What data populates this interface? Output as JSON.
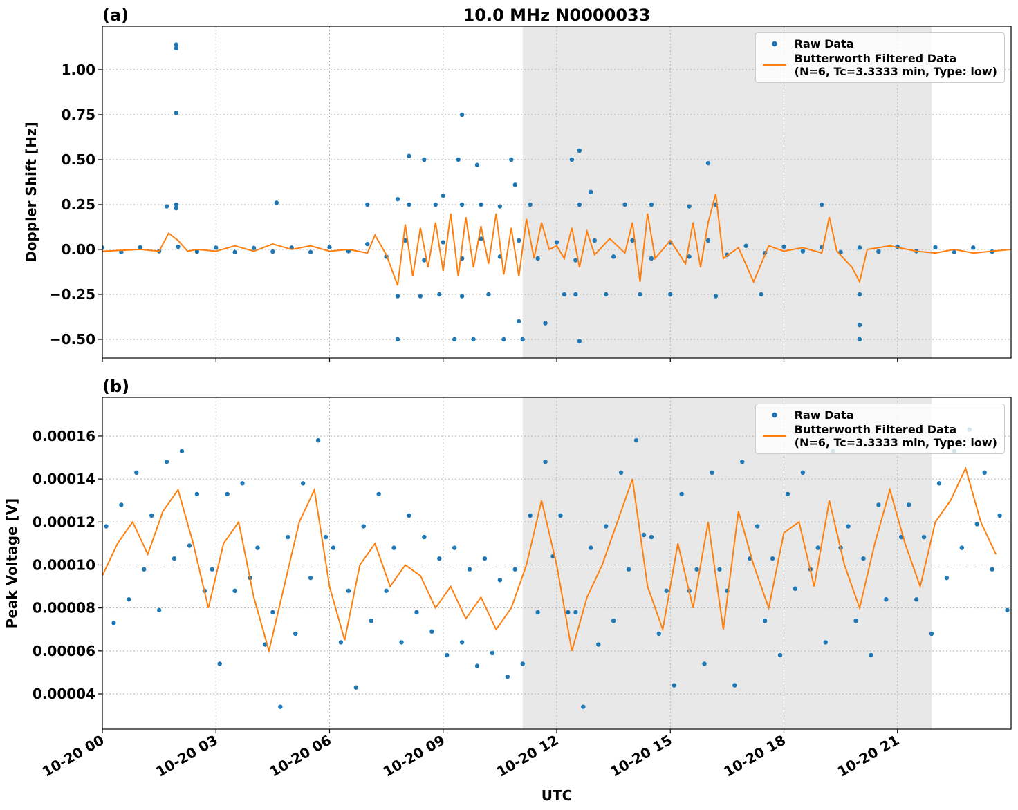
{
  "chart_data": [
    {
      "type": "scatter",
      "panel_label": "(a)",
      "title": "10.0 MHz N0000033",
      "ylabel": "Doppler Shift [Hz]",
      "xlim": [
        0,
        24
      ],
      "xticks": [
        0,
        3,
        6,
        9,
        12,
        15,
        18,
        21
      ],
      "ylim": [
        -0.604,
        1.242
      ],
      "yticks": [
        {
          "value": -0.5,
          "label": "−0.50"
        },
        {
          "value": -0.25,
          "label": "−0.25"
        },
        {
          "value": 0,
          "label": "0.00"
        },
        {
          "value": 0.25,
          "label": "0.25"
        },
        {
          "value": 0.5,
          "label": "0.50"
        },
        {
          "value": 0.75,
          "label": "0.75"
        },
        {
          "value": 1.0,
          "label": "1.00"
        }
      ],
      "grid": true,
      "shaded_span": [
        11.1,
        21.9
      ],
      "legend": "upper-right",
      "series": [
        {
          "name": "Raw Data",
          "kind": "points",
          "color": "#1f77b4",
          "x": [
            0,
            0.5,
            1,
            1.5,
            2,
            2.5,
            3,
            3.5,
            4,
            4.5,
            5,
            5.5,
            6,
            6.5,
            7,
            7.5,
            8,
            8.5,
            9,
            9.5,
            10,
            10.5,
            11,
            11.5,
            12,
            12.5,
            13,
            13.5,
            14,
            14.5,
            15,
            15.5,
            16,
            16.5,
            17,
            17.5,
            18,
            18.5,
            19,
            19.5,
            20,
            20.5,
            21,
            21.5,
            22,
            22.5,
            23,
            23.5,
            1.95,
            1.95,
            1.95,
            1.95,
            1.95,
            1.7,
            4.6,
            7.0,
            7.8,
            7.8,
            7.8,
            8.1,
            8.1,
            8.4,
            8.5,
            8.9,
            9.0,
            9.3,
            9.4,
            9.5,
            9.5,
            9.5,
            9.8,
            9.9,
            10.0,
            10.2,
            10.6,
            10.8,
            10.9,
            11.0,
            11.1,
            11.3,
            11.7,
            12.4,
            12.6,
            12.6,
            12.6,
            12.5,
            12.9,
            13.3,
            13.8,
            14.5,
            15.0,
            15.5,
            16.0,
            16.2,
            16.2,
            17.4,
            19.0,
            20.0,
            20.0,
            20.0,
            10.5,
            8.8,
            12.2,
            14.2
          ],
          "values": [
            0.01,
            -0.015,
            0.012,
            -0.01,
            0.015,
            -0.012,
            0.01,
            -0.015,
            0.008,
            -0.012,
            0.01,
            -0.015,
            0.012,
            -0.01,
            0.03,
            -0.04,
            0.05,
            -0.06,
            0.04,
            -0.05,
            0.06,
            -0.04,
            0.05,
            -0.05,
            0.04,
            -0.06,
            0.05,
            -0.04,
            0.05,
            -0.05,
            0.04,
            -0.04,
            0.05,
            -0.03,
            0.02,
            -0.02,
            0.015,
            -0.01,
            0.012,
            -0.015,
            0.01,
            -0.012,
            0.015,
            -0.01,
            0.012,
            -0.015,
            0.01,
            -0.012,
            1.14,
            1.12,
            0.76,
            0.25,
            0.23,
            0.24,
            0.26,
            0.25,
            0.28,
            -0.26,
            -0.5,
            0.52,
            0.25,
            -0.26,
            0.5,
            -0.25,
            0.3,
            -0.5,
            0.5,
            0.75,
            0.25,
            -0.26,
            -0.5,
            0.47,
            0.25,
            -0.25,
            -0.5,
            0.5,
            0.36,
            -0.4,
            -0.5,
            0.25,
            -0.41,
            0.5,
            0.55,
            0.25,
            -0.51,
            -0.25,
            0.32,
            -0.25,
            0.25,
            0.25,
            -0.25,
            0.24,
            0.48,
            0.25,
            -0.26,
            -0.25,
            0.25,
            -0.25,
            -0.42,
            -0.5,
            0.24,
            0.25,
            -0.25,
            -0.25
          ]
        },
        {
          "name": "Butterworth Filtered Data\n(N=6, Tc=3.3333 min, Type: low)",
          "kind": "line",
          "color": "#ff7f0e",
          "x": [
            0,
            0.5,
            1,
            1.5,
            1.75,
            2.0,
            2.25,
            2.5,
            3.0,
            3.5,
            4.0,
            4.5,
            5.0,
            5.5,
            6.0,
            6.5,
            7.0,
            7.2,
            7.5,
            7.8,
            8.0,
            8.2,
            8.4,
            8.6,
            8.8,
            9.0,
            9.2,
            9.4,
            9.6,
            9.8,
            10.0,
            10.2,
            10.4,
            10.6,
            10.8,
            11.0,
            11.2,
            11.4,
            11.6,
            11.8,
            12.0,
            12.2,
            12.4,
            12.6,
            12.8,
            13.0,
            13.4,
            13.8,
            14.0,
            14.2,
            14.4,
            14.6,
            15.0,
            15.4,
            15.6,
            15.8,
            16.0,
            16.2,
            16.4,
            16.8,
            17.2,
            17.6,
            18.0,
            18.5,
            19.0,
            19.2,
            19.4,
            19.8,
            20.0,
            20.2,
            20.8,
            21.5,
            22.0,
            22.5,
            23.0,
            23.5,
            24.0
          ],
          "values": [
            -0.01,
            -0.005,
            0.0,
            -0.01,
            0.09,
            0.05,
            -0.01,
            0.0,
            -0.01,
            0.02,
            -0.01,
            0.03,
            0.0,
            0.02,
            -0.01,
            0.0,
            -0.02,
            0.08,
            -0.03,
            -0.2,
            0.14,
            -0.15,
            0.12,
            -0.1,
            0.15,
            -0.12,
            0.2,
            -0.15,
            0.18,
            -0.1,
            0.13,
            -0.08,
            0.2,
            -0.14,
            0.12,
            -0.15,
            0.17,
            -0.05,
            0.15,
            0.0,
            0.02,
            -0.05,
            0.12,
            -0.1,
            0.1,
            -0.03,
            0.06,
            -0.02,
            0.15,
            -0.18,
            0.2,
            -0.05,
            0.05,
            -0.08,
            0.15,
            -0.1,
            0.15,
            0.31,
            -0.05,
            0.01,
            -0.18,
            0.02,
            -0.01,
            0.01,
            -0.02,
            0.18,
            -0.01,
            -0.1,
            -0.18,
            0.0,
            0.02,
            -0.01,
            -0.02,
            0.0,
            -0.02,
            -0.01,
            0.0
          ]
        }
      ]
    },
    {
      "type": "scatter",
      "panel_label": "(b)",
      "ylabel": "Peak Voltage [V]",
      "xlabel": "UTC",
      "xlim": [
        0,
        24
      ],
      "xticks": [
        {
          "value": 0,
          "label": "10-20 00"
        },
        {
          "value": 3,
          "label": "10-20 03"
        },
        {
          "value": 6,
          "label": "10-20 06"
        },
        {
          "value": 9,
          "label": "10-20 09"
        },
        {
          "value": 12,
          "label": "10-20 12"
        },
        {
          "value": 15,
          "label": "10-20 15"
        },
        {
          "value": 18,
          "label": "10-20 18"
        },
        {
          "value": 21,
          "label": "10-20 21"
        }
      ],
      "ylim": [
        2.36e-05,
        0.000178
      ],
      "yticks": [
        {
          "value": 4e-05,
          "label": "0.00004"
        },
        {
          "value": 6e-05,
          "label": "0.00006"
        },
        {
          "value": 8e-05,
          "label": "0.00008"
        },
        {
          "value": 0.0001,
          "label": "0.00010"
        },
        {
          "value": 0.00012,
          "label": "0.00012"
        },
        {
          "value": 0.00014,
          "label": "0.00014"
        },
        {
          "value": 0.00016,
          "label": "0.00016"
        }
      ],
      "grid": true,
      "shaded_span": [
        11.1,
        21.9
      ],
      "legend": "upper-right",
      "series": [
        {
          "name": "Raw Data",
          "kind": "points",
          "color": "#1f77b4",
          "x": [
            0.1,
            0.3,
            0.5,
            0.7,
            0.9,
            1.1,
            1.3,
            1.5,
            1.7,
            1.9,
            2.1,
            2.3,
            2.5,
            2.7,
            2.9,
            3.1,
            3.3,
            3.5,
            3.7,
            3.9,
            4.1,
            4.3,
            4.5,
            4.7,
            4.9,
            5.1,
            5.3,
            5.5,
            5.7,
            5.9,
            6.1,
            6.3,
            6.5,
            6.7,
            6.9,
            7.1,
            7.3,
            7.5,
            7.7,
            7.9,
            8.1,
            8.3,
            8.5,
            8.7,
            8.9,
            9.1,
            9.3,
            9.5,
            9.7,
            9.9,
            10.1,
            10.3,
            10.5,
            10.7,
            10.9,
            11.1,
            11.3,
            11.5,
            11.7,
            11.9,
            12.1,
            12.3,
            12.5,
            12.7,
            12.9,
            13.1,
            13.3,
            13.5,
            13.7,
            13.9,
            14.1,
            14.3,
            14.5,
            14.7,
            14.9,
            15.1,
            15.3,
            15.5,
            15.7,
            15.9,
            16.1,
            16.3,
            16.5,
            16.7,
            16.9,
            17.1,
            17.3,
            17.5,
            17.7,
            17.9,
            18.1,
            18.3,
            18.5,
            18.7,
            18.9,
            19.1,
            19.3,
            19.5,
            19.7,
            19.9,
            20.1,
            20.3,
            20.5,
            20.7,
            20.9,
            21.1,
            21.3,
            21.5,
            21.7,
            21.9,
            22.1,
            22.3,
            22.5,
            22.7,
            22.9,
            23.1,
            23.3,
            23.5,
            23.7,
            23.9
          ],
          "values": [
            0.000118,
            7.3e-05,
            0.000128,
            8.4e-05,
            0.000143,
            9.8e-05,
            0.000123,
            7.9e-05,
            0.000148,
            0.000103,
            0.000153,
            0.000109,
            0.000133,
            8.8e-05,
            9.8e-05,
            5.4e-05,
            0.000133,
            8.8e-05,
            0.000138,
            9.4e-05,
            0.000108,
            6.3e-05,
            7.8e-05,
            3.4e-05,
            0.000113,
            6.8e-05,
            0.000138,
            9.4e-05,
            0.000158,
            0.000113,
            0.000108,
            6.4e-05,
            8.8e-05,
            4.3e-05,
            0.000118,
            7.4e-05,
            0.000133,
            8.8e-05,
            0.000108,
            6.4e-05,
            0.000123,
            7.8e-05,
            0.000113,
            6.9e-05,
            0.000103,
            5.8e-05,
            0.000108,
            6.4e-05,
            9.8e-05,
            5.3e-05,
            0.000103,
            5.9e-05,
            9.3e-05,
            4.8e-05,
            9.8e-05,
            5.4e-05,
            0.000123,
            7.8e-05,
            0.000148,
            0.000104,
            0.000123,
            7.8e-05,
            7.8e-05,
            3.4e-05,
            0.000108,
            6.3e-05,
            0.000118,
            7.4e-05,
            0.000143,
            9.8e-05,
            0.000158,
            0.000114,
            0.000113,
            6.8e-05,
            8.8e-05,
            4.4e-05,
            0.000133,
            8.8e-05,
            9.8e-05,
            5.4e-05,
            0.000143,
            9.8e-05,
            8.8e-05,
            4.4e-05,
            0.000148,
            0.000103,
            0.000118,
            7.4e-05,
            0.000103,
            5.8e-05,
            0.000133,
            8.9e-05,
            0.000143,
            9.8e-05,
            0.000108,
            6.4e-05,
            0.000153,
            0.000108,
            0.000118,
            7.4e-05,
            0.000103,
            5.8e-05,
            0.000128,
            8.4e-05,
            0.000158,
            0.000113,
            0.000128,
            8.4e-05,
            0.000113,
            6.8e-05,
            0.000138,
            9.4e-05,
            0.000153,
            0.000108,
            0.000163,
            0.000119,
            0.000143,
            9.8e-05,
            0.000123,
            7.9e-05
          ]
        },
        {
          "name": "Butterworth Filtered Data\n(N=6, Tc=3.3333 min, Type: low)",
          "kind": "line",
          "color": "#ff7f0e",
          "x": [
            0,
            0.4,
            0.8,
            1.2,
            1.6,
            2.0,
            2.4,
            2.8,
            3.2,
            3.6,
            4.0,
            4.4,
            4.8,
            5.2,
            5.6,
            6.0,
            6.4,
            6.8,
            7.2,
            7.6,
            8.0,
            8.4,
            8.8,
            9.2,
            9.6,
            10.0,
            10.4,
            10.8,
            11.2,
            11.6,
            12.0,
            12.4,
            12.8,
            13.2,
            13.6,
            14.0,
            14.4,
            14.8,
            15.2,
            15.6,
            16.0,
            16.4,
            16.8,
            17.2,
            17.6,
            18.0,
            18.4,
            18.8,
            19.2,
            19.6,
            20.0,
            20.4,
            20.8,
            21.2,
            21.6,
            22.0,
            22.4,
            22.8,
            23.2,
            23.6
          ],
          "values": [
            9.5e-05,
            0.00011,
            0.00012,
            0.000105,
            0.000125,
            0.000135,
            0.00011,
            8e-05,
            0.00011,
            0.00012,
            8.5e-05,
            6e-05,
            9e-05,
            0.00012,
            0.000135,
            9e-05,
            6.5e-05,
            0.0001,
            0.00011,
            9e-05,
            0.0001,
            9.5e-05,
            8e-05,
            9e-05,
            7.5e-05,
            8.5e-05,
            7e-05,
            8e-05,
            0.0001,
            0.00013,
            0.0001,
            6e-05,
            8.5e-05,
            0.0001,
            0.00012,
            0.00014,
            9e-05,
            7e-05,
            0.00011,
            8e-05,
            0.00012,
            7e-05,
            0.000125,
            0.0001,
            8e-05,
            0.000115,
            0.00012,
            9e-05,
            0.00013,
            0.0001,
            8e-05,
            0.00011,
            0.000135,
            0.00011,
            9e-05,
            0.00012,
            0.00013,
            0.000145,
            0.00012,
            0.000105
          ]
        }
      ]
    }
  ]
}
